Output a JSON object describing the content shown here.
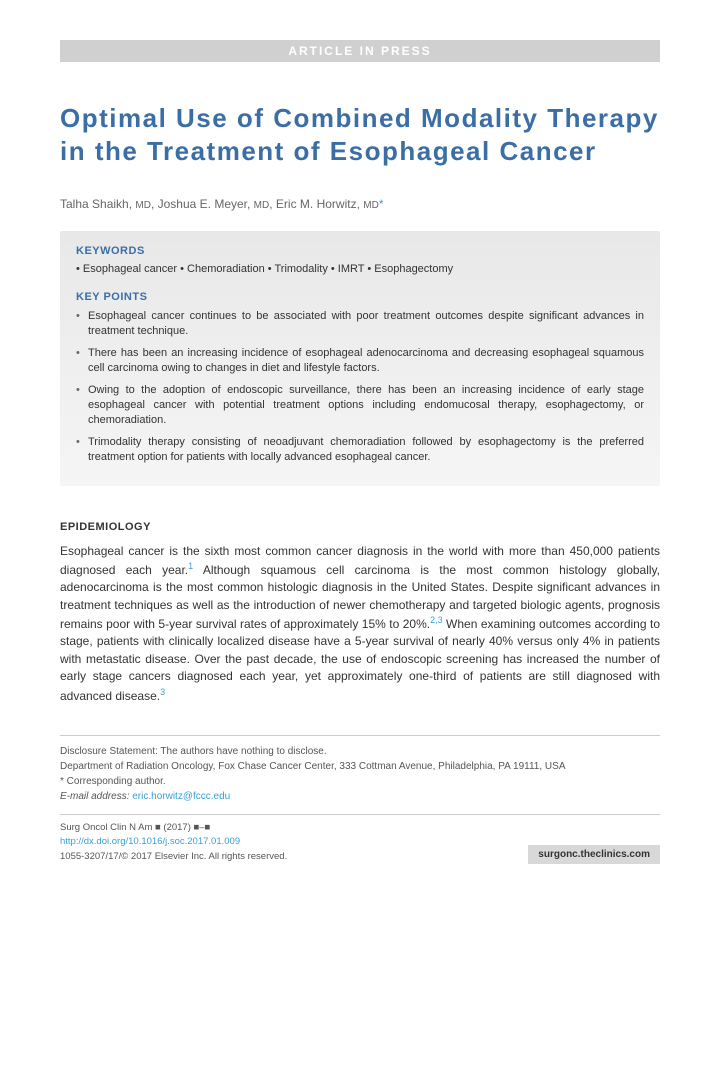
{
  "banner": "ARTICLE IN PRESS",
  "title": "Optimal Use of Combined Modality Therapy in the Treatment of Esophageal Cancer",
  "authors": [
    {
      "name": "Talha Shaikh",
      "degree": "MD",
      "corr": false
    },
    {
      "name": "Joshua E. Meyer",
      "degree": "MD",
      "corr": false
    },
    {
      "name": "Eric M. Horwitz",
      "degree": "MD",
      "corr": true
    }
  ],
  "keywords_heading": "KEYWORDS",
  "keywords_line": "• Esophageal cancer • Chemoradiation • Trimodality • IMRT • Esophagectomy",
  "keypoints_heading": "KEY POINTS",
  "keypoints": [
    "Esophageal cancer continues to be associated with poor treatment outcomes despite significant advances in treatment technique.",
    "There has been an increasing incidence of esophageal adenocarcinoma and decreasing esophageal squamous cell carcinoma owing to changes in diet and lifestyle factors.",
    "Owing to the adoption of endoscopic surveillance, there has been an increasing incidence of early stage esophageal cancer with potential treatment options including endomucosal therapy, esophagectomy, or chemoradiation.",
    "Trimodality therapy consisting of neoadjuvant chemoradiation followed by esophagectomy is the preferred treatment option for patients with locally advanced esophageal cancer."
  ],
  "epi_heading": "EPIDEMIOLOGY",
  "epi_body_1": "Esophageal cancer is the sixth most common cancer diagnosis in the world with more than 450,000 patients diagnosed each year.",
  "epi_ref_1": "1",
  "epi_body_2": " Although squamous cell carcinoma is the most common histology globally, adenocarcinoma is the most common histologic diagnosis in the United States. Despite significant advances in treatment techniques as well as the introduction of newer chemotherapy and targeted biologic agents, prognosis remains poor with 5-year survival rates of approximately 15% to 20%.",
  "epi_ref_2": "2,3",
  "epi_body_3": " When examining outcomes according to stage, patients with clinically localized disease have a 5-year survival of nearly 40% versus only 4% in patients with metastatic disease. Over the past decade, the use of endoscopic screening has increased the number of early stage cancers diagnosed each year, yet approximately one-third of patients are still diagnosed with advanced disease.",
  "epi_ref_3": "3",
  "footer": {
    "disclosure": "Disclosure Statement: The authors have nothing to disclose.",
    "affiliation": "Department of Radiation Oncology, Fox Chase Cancer Center, 333 Cottman Avenue, Philadelphia, PA 19111, USA",
    "corr_label": "* Corresponding author.",
    "email_label": "E-mail address:",
    "email": "eric.horwitz@fccc.edu",
    "journal": "Surg Oncol Clin N Am ■ (2017) ■–■",
    "doi": "http://dx.doi.org/10.1016/j.soc.2017.01.009",
    "issn": "1055-3207/17/© 2017 Elsevier Inc. All rights reserved.",
    "site": "surgonc.theclinics.com"
  },
  "colors": {
    "accent": "#3b6ea5",
    "link": "#3b9fd4",
    "banner_bg": "#d0d0d0",
    "box_bg_top": "#e8e8e8",
    "box_bg_bottom": "#f5f5f5",
    "text": "#333333"
  }
}
